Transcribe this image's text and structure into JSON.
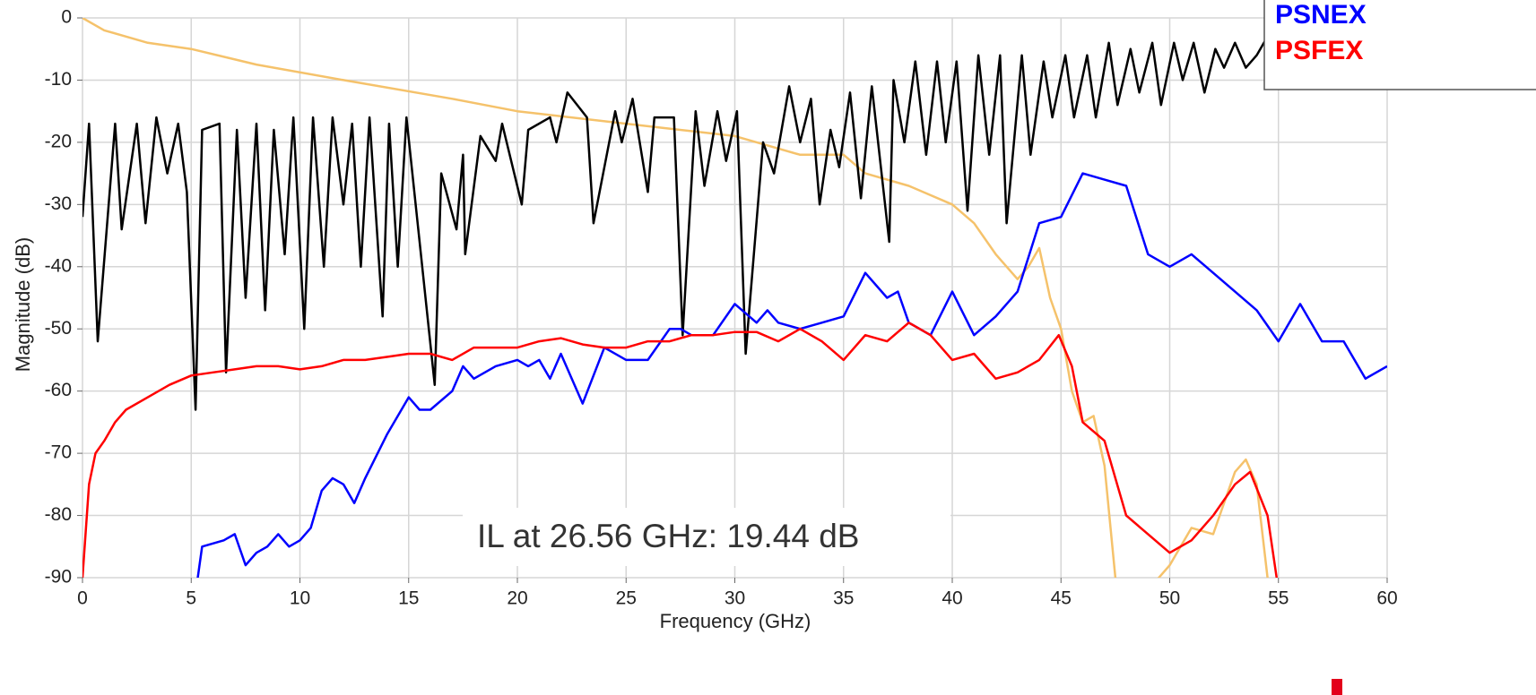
{
  "chart_data": {
    "type": "line",
    "x_label": "Frequency (GHz)",
    "y_label": "Magnitude (dB)",
    "xlim": [
      0,
      60
    ],
    "ylim": [
      -90,
      0
    ],
    "xticks": [
      0,
      5,
      10,
      15,
      20,
      25,
      30,
      35,
      40,
      45,
      50,
      55,
      60
    ],
    "yticks": [
      0,
      -10,
      -20,
      -30,
      -40,
      -50,
      -60,
      -70,
      -80,
      -90
    ],
    "grid": true,
    "legend": "top-right",
    "annotation": "IL at 26.56 GHz: 19.44 dB",
    "series": [
      {
        "color": "#f5c26b",
        "x": [
          0,
          1,
          2,
          3,
          5,
          8,
          12,
          17,
          20,
          25,
          30,
          33,
          35,
          36,
          38,
          40,
          41,
          42,
          43,
          43.5,
          44,
          44.5,
          45,
          45.5,
          46,
          46.5,
          47,
          47.5,
          48,
          49,
          50,
          51,
          52,
          52.5,
          53,
          53.5,
          54,
          54.5,
          55,
          55.5,
          56
        ],
        "values": [
          0,
          -2,
          -3,
          -4,
          -5,
          -7.5,
          -10,
          -13,
          -15,
          -17,
          -19,
          -22,
          -22,
          -25,
          -27,
          -30,
          -33,
          -38,
          -42,
          -40,
          -37,
          -45,
          -50,
          -60,
          -65,
          -64,
          -72,
          -90,
          -95,
          -92,
          -88,
          -82,
          -83,
          -78,
          -73,
          -71,
          -75,
          -90,
          -94,
          -91,
          -95
        ]
      },
      {
        "color": "#000000",
        "x": [
          0,
          0.3,
          0.7,
          1.5,
          1.8,
          2.5,
          2.9,
          3.4,
          3.9,
          4.4,
          4.8,
          5.2,
          5.5,
          6.3,
          6.6,
          7.1,
          7.5,
          8,
          8.4,
          8.8,
          9.3,
          9.7,
          10.2,
          10.6,
          11.1,
          11.5,
          12,
          12.4,
          12.8,
          13.2,
          13.8,
          14.1,
          14.5,
          14.9,
          16.2,
          16.5,
          17.2,
          17.5,
          17.6,
          18.3,
          19,
          19.3,
          20.2,
          20.5,
          21.5,
          21.8,
          22.3,
          23.2,
          23.5,
          24.5,
          24.8,
          25.3,
          26,
          26.3,
          27.2,
          27.6,
          28.2,
          28.6,
          29.2,
          29.6,
          30.1,
          30.5,
          31.3,
          31.8,
          32.5,
          33,
          33.5,
          33.9,
          34.4,
          34.8,
          35.3,
          35.8,
          36.3,
          37.1,
          37.3,
          37.8,
          38.3,
          38.8,
          39.3,
          39.7,
          40.2,
          40.7,
          41.2,
          41.7,
          42.2,
          42.5,
          43.2,
          43.6,
          44.2,
          44.6,
          45.2,
          45.6,
          46.2,
          46.6,
          47.2,
          47.6,
          48.2,
          48.6,
          49.2,
          49.6,
          50.2,
          50.6,
          51.1,
          51.6,
          52.1,
          52.5,
          53,
          53.5,
          54,
          54.5,
          55
        ],
        "values": [
          -32,
          -17,
          -52,
          -17,
          -34,
          -17,
          -33,
          -16,
          -25,
          -17,
          -28,
          -63,
          -18,
          -17,
          -57,
          -18,
          -45,
          -17,
          -47,
          -18,
          -38,
          -16,
          -50,
          -16,
          -40,
          -16,
          -30,
          -17,
          -40,
          -16,
          -48,
          -17,
          -40,
          -16,
          -59,
          -25,
          -34,
          -22,
          -38,
          -19,
          -23,
          -17,
          -30,
          -18,
          -16,
          -20,
          -12,
          -16,
          -33,
          -15,
          -20,
          -13,
          -28,
          -16,
          -16,
          -51,
          -15,
          -27,
          -15,
          -23,
          -15,
          -54,
          -20,
          -25,
          -11,
          -20,
          -13,
          -30,
          -18,
          -24,
          -12,
          -29,
          -11,
          -36,
          -10,
          -20,
          -7,
          -22,
          -7,
          -20,
          -7,
          -31,
          -6,
          -22,
          -6,
          -33,
          -6,
          -22,
          -7,
          -16,
          -6,
          -16,
          -6,
          -16,
          -4,
          -14,
          -5,
          -12,
          -4,
          -14,
          -4,
          -10,
          -4,
          -12,
          -5,
          -8,
          -4,
          -8,
          -6,
          -3,
          -8
        ]
      },
      {
        "name": "PSNEX",
        "color": "#0000ff",
        "x": [
          5.1,
          5.5,
          6.5,
          7,
          7.5,
          8,
          8.5,
          9,
          9.5,
          10,
          10.5,
          11,
          11.5,
          12,
          12.5,
          13,
          14,
          15,
          15.5,
          16,
          17,
          17.5,
          18,
          19,
          20,
          20.5,
          21,
          21.5,
          22,
          23,
          24,
          25,
          26,
          27,
          27.5,
          28,
          29,
          30,
          31,
          31.5,
          32,
          33,
          34,
          35,
          36,
          37,
          37.5,
          38,
          39,
          40,
          41,
          42,
          43,
          44,
          45,
          46,
          47,
          48,
          49,
          50,
          51,
          52,
          53,
          54,
          55,
          56,
          57,
          58,
          59,
          60
        ],
        "values": [
          -95,
          -85,
          -84,
          -83,
          -88,
          -86,
          -85,
          -83,
          -85,
          -84,
          -82,
          -76,
          -74,
          -75,
          -78,
          -74,
          -67,
          -61,
          -63,
          -63,
          -60,
          -56,
          -58,
          -56,
          -55,
          -56,
          -55,
          -58,
          -54,
          -62,
          -53,
          -55,
          -55,
          -50,
          -50,
          -51,
          -51,
          -46,
          -49,
          -47,
          -49,
          -50,
          -49,
          -48,
          -41,
          -45,
          -44,
          -49,
          -51,
          -44,
          -51,
          -48,
          -44,
          -33,
          -32,
          -25,
          -26,
          -27,
          -38,
          -40,
          -38,
          -41,
          -44,
          -47,
          -52,
          -46,
          -52,
          -52,
          -58,
          -56
        ]
      },
      {
        "name": "PSFEX",
        "color": "#ff0000",
        "x": [
          0,
          0.3,
          0.6,
          1,
          1.5,
          2,
          3,
          4,
          5,
          6,
          7,
          8,
          9,
          10,
          11,
          12,
          13,
          14,
          15,
          16,
          17,
          18,
          19,
          20,
          21,
          22,
          23,
          24,
          25,
          26,
          27,
          28,
          29,
          30,
          31,
          32,
          33,
          34,
          35,
          36,
          37,
          38,
          39,
          40,
          41,
          42,
          43,
          44,
          44.9,
          45.5,
          46,
          47,
          48,
          49,
          50,
          51,
          52,
          53,
          53.7,
          54.5,
          55
        ],
        "values": [
          -90,
          -75,
          -70,
          -68,
          -65,
          -63,
          -61,
          -59,
          -57.5,
          -57,
          -56.5,
          -56,
          -56,
          -56.5,
          -56,
          -55,
          -55,
          -54.5,
          -54,
          -54,
          -55,
          -53,
          -53,
          -53,
          -52,
          -51.5,
          -52.5,
          -53,
          -53,
          -52,
          -52,
          -51,
          -51,
          -50.5,
          -50.5,
          -52,
          -50,
          -52,
          -55,
          -51,
          -52,
          -49,
          -51,
          -55,
          -54,
          -58,
          -57,
          -55,
          -51,
          -56,
          -65,
          -68,
          -80,
          -83,
          -86,
          -84,
          -80,
          -75,
          -73,
          -80,
          -92
        ]
      }
    ]
  }
}
